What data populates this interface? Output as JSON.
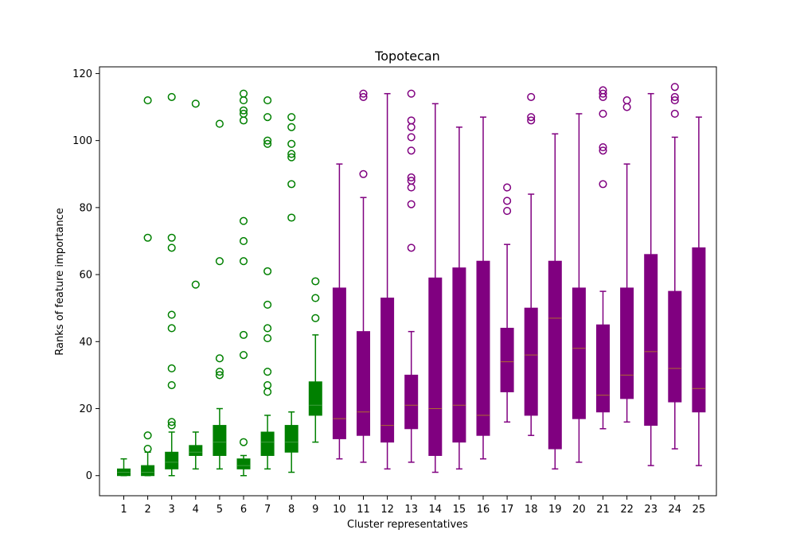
{
  "chart_data": {
    "type": "box",
    "title": "Topotecan",
    "xlabel": "Cluster representatives",
    "ylabel": "Ranks of feature importance",
    "ylim": [
      -6,
      122
    ],
    "yticks": [
      0,
      20,
      40,
      60,
      80,
      100,
      120
    ],
    "categories": [
      "1",
      "2",
      "3",
      "4",
      "5",
      "6",
      "7",
      "8",
      "9",
      "10",
      "11",
      "12",
      "13",
      "14",
      "15",
      "16",
      "17",
      "18",
      "19",
      "20",
      "21",
      "22",
      "23",
      "24",
      "25"
    ],
    "colors": {
      "group_a": "#008000",
      "group_b": "#800080",
      "median_a": "#3f9f3f",
      "median_b": "#b06a30"
    },
    "series": [
      {
        "category": "1",
        "color": "group_a",
        "whisker_low": 0,
        "q1": 0,
        "median": 1,
        "q3": 2,
        "whisker_high": 5,
        "outliers": []
      },
      {
        "category": "2",
        "color": "group_a",
        "whisker_low": 0,
        "q1": 0,
        "median": 1,
        "q3": 3,
        "whisker_high": 7,
        "outliers": [
          8,
          12,
          71,
          112
        ]
      },
      {
        "category": "3",
        "color": "group_a",
        "whisker_low": 0,
        "q1": 2,
        "median": 4,
        "q3": 7,
        "whisker_high": 13,
        "outliers": [
          15,
          16,
          27,
          32,
          44,
          48,
          68,
          71,
          113
        ]
      },
      {
        "category": "4",
        "color": "group_a",
        "whisker_low": 2,
        "q1": 6,
        "median": 7,
        "q3": 9,
        "whisker_high": 13,
        "outliers": [
          57,
          111
        ]
      },
      {
        "category": "5",
        "color": "group_a",
        "whisker_low": 2,
        "q1": 6,
        "median": 10,
        "q3": 15,
        "whisker_high": 20,
        "outliers": [
          30,
          31,
          35,
          64,
          105
        ]
      },
      {
        "category": "6",
        "color": "group_a",
        "whisker_low": 0,
        "q1": 2,
        "median": 3,
        "q3": 5,
        "whisker_high": 6,
        "outliers": [
          10,
          36,
          42,
          64,
          70,
          76,
          106,
          108,
          109,
          112,
          114
        ]
      },
      {
        "category": "7",
        "color": "group_a",
        "whisker_low": 2,
        "q1": 6,
        "median": 10,
        "q3": 13,
        "whisker_high": 18,
        "outliers": [
          25,
          27,
          31,
          41,
          44,
          51,
          61,
          99,
          100,
          107,
          112
        ]
      },
      {
        "category": "8",
        "color": "group_a",
        "whisker_low": 1,
        "q1": 7,
        "median": 10,
        "q3": 15,
        "whisker_high": 19,
        "outliers": [
          77,
          87,
          95,
          96,
          99,
          104,
          107
        ]
      },
      {
        "category": "9",
        "color": "group_a",
        "whisker_low": 10,
        "q1": 18,
        "median": 21,
        "q3": 28,
        "whisker_high": 42,
        "outliers": [
          47,
          53,
          58
        ]
      },
      {
        "category": "10",
        "color": "group_b",
        "whisker_low": 5,
        "q1": 11,
        "median": 17,
        "q3": 56,
        "whisker_high": 93,
        "outliers": []
      },
      {
        "category": "11",
        "color": "group_b",
        "whisker_low": 4,
        "q1": 12,
        "median": 19,
        "q3": 43,
        "whisker_high": 83,
        "outliers": [
          90,
          113,
          114
        ]
      },
      {
        "category": "12",
        "color": "group_b",
        "whisker_low": 2,
        "q1": 10,
        "median": 15,
        "q3": 53,
        "whisker_high": 114,
        "outliers": []
      },
      {
        "category": "13",
        "color": "group_b",
        "whisker_low": 4,
        "q1": 14,
        "median": 21,
        "q3": 30,
        "whisker_high": 43,
        "outliers": [
          68,
          81,
          86,
          88,
          89,
          97,
          101,
          104,
          106,
          114
        ]
      },
      {
        "category": "14",
        "color": "group_b",
        "whisker_low": 1,
        "q1": 6,
        "median": 20,
        "q3": 59,
        "whisker_high": 111,
        "outliers": []
      },
      {
        "category": "15",
        "color": "group_b",
        "whisker_low": 2,
        "q1": 10,
        "median": 21,
        "q3": 62,
        "whisker_high": 104,
        "outliers": []
      },
      {
        "category": "16",
        "color": "group_b",
        "whisker_low": 5,
        "q1": 12,
        "median": 18,
        "q3": 64,
        "whisker_high": 107,
        "outliers": []
      },
      {
        "category": "17",
        "color": "group_b",
        "whisker_low": 16,
        "q1": 25,
        "median": 34,
        "q3": 44,
        "whisker_high": 69,
        "outliers": [
          79,
          82,
          86
        ]
      },
      {
        "category": "18",
        "color": "group_b",
        "whisker_low": 12,
        "q1": 18,
        "median": 36,
        "q3": 50,
        "whisker_high": 84,
        "outliers": [
          106,
          107,
          113
        ]
      },
      {
        "category": "19",
        "color": "group_b",
        "whisker_low": 2,
        "q1": 8,
        "median": 47,
        "q3": 64,
        "whisker_high": 102,
        "outliers": []
      },
      {
        "category": "20",
        "color": "group_b",
        "whisker_low": 4,
        "q1": 17,
        "median": 38,
        "q3": 56,
        "whisker_high": 108,
        "outliers": []
      },
      {
        "category": "21",
        "color": "group_b",
        "whisker_low": 14,
        "q1": 19,
        "median": 24,
        "q3": 45,
        "whisker_high": 55,
        "outliers": [
          87,
          97,
          98,
          108,
          113,
          114,
          115
        ]
      },
      {
        "category": "22",
        "color": "group_b",
        "whisker_low": 16,
        "q1": 23,
        "median": 30,
        "q3": 56,
        "whisker_high": 93,
        "outliers": [
          110,
          112
        ]
      },
      {
        "category": "23",
        "color": "group_b",
        "whisker_low": 3,
        "q1": 15,
        "median": 37,
        "q3": 66,
        "whisker_high": 114,
        "outliers": []
      },
      {
        "category": "24",
        "color": "group_b",
        "whisker_low": 8,
        "q1": 22,
        "median": 32,
        "q3": 55,
        "whisker_high": 101,
        "outliers": [
          108,
          112,
          113,
          116
        ]
      },
      {
        "category": "25",
        "color": "group_b",
        "whisker_low": 3,
        "q1": 19,
        "median": 26,
        "q3": 68,
        "whisker_high": 107,
        "outliers": []
      }
    ]
  }
}
